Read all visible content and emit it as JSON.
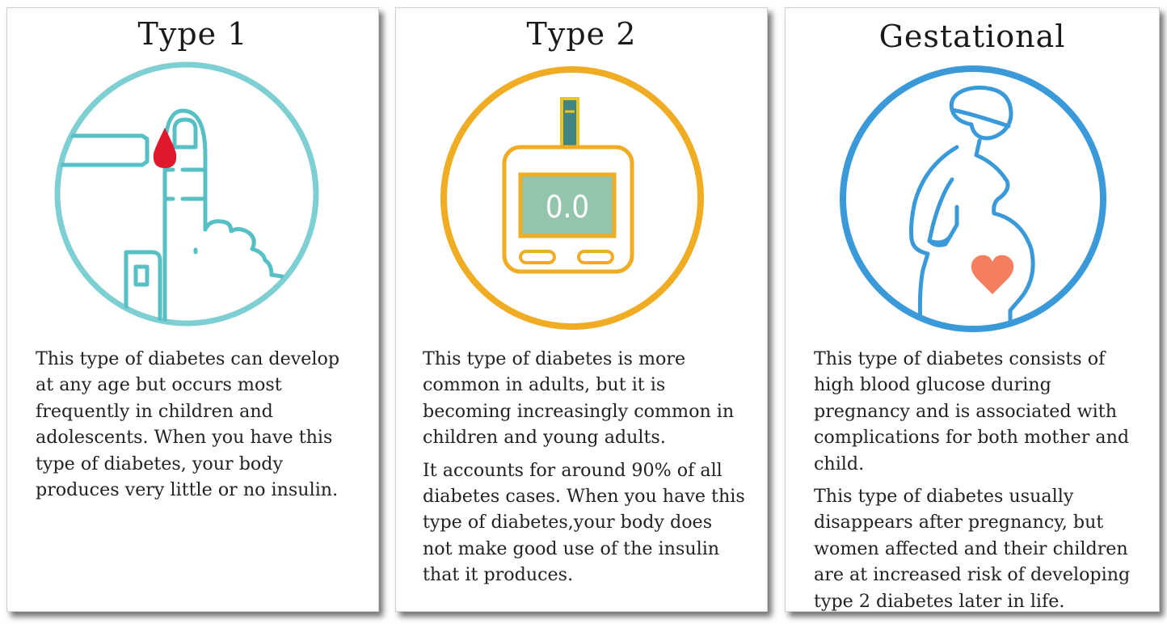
{
  "cards": [
    {
      "title": "Type 1",
      "icon": "finger-prick-icon",
      "accent": "#7ecfd3",
      "paragraphs": [
        "This type of diabetes can develop at any age but occurs most frequently in children and adolescents. When you have this type of diabetes, your body produces very little or no insulin."
      ]
    },
    {
      "title": "Type 2",
      "icon": "glucose-meter-icon",
      "accent": "#f0ac23",
      "meter_reading": "0.0",
      "paragraphs": [
        "This type of diabetes is more common in adults, but it is becoming increasingly common in children and young adults.",
        "It accounts for around 90% of all diabetes cases. When you have this type of diabetes,your body does not make good use of the insulin that it produces."
      ]
    },
    {
      "title": "Gestational",
      "icon": "pregnant-woman-icon",
      "accent": "#3a9ad9",
      "paragraphs": [
        "This type of diabetes consists of high blood glucose during pregnancy and is associated with complications for both mother and child.",
        "This type of diabetes usually disappears after pregnancy, but women affected and their children are at increased risk of developing type 2 diabetes later in life."
      ]
    }
  ],
  "colors": {
    "blood_drop": "#e0182b",
    "screen": "#92c5ab",
    "meter_teal": "#3f8581",
    "heart": "#f47f5e"
  }
}
